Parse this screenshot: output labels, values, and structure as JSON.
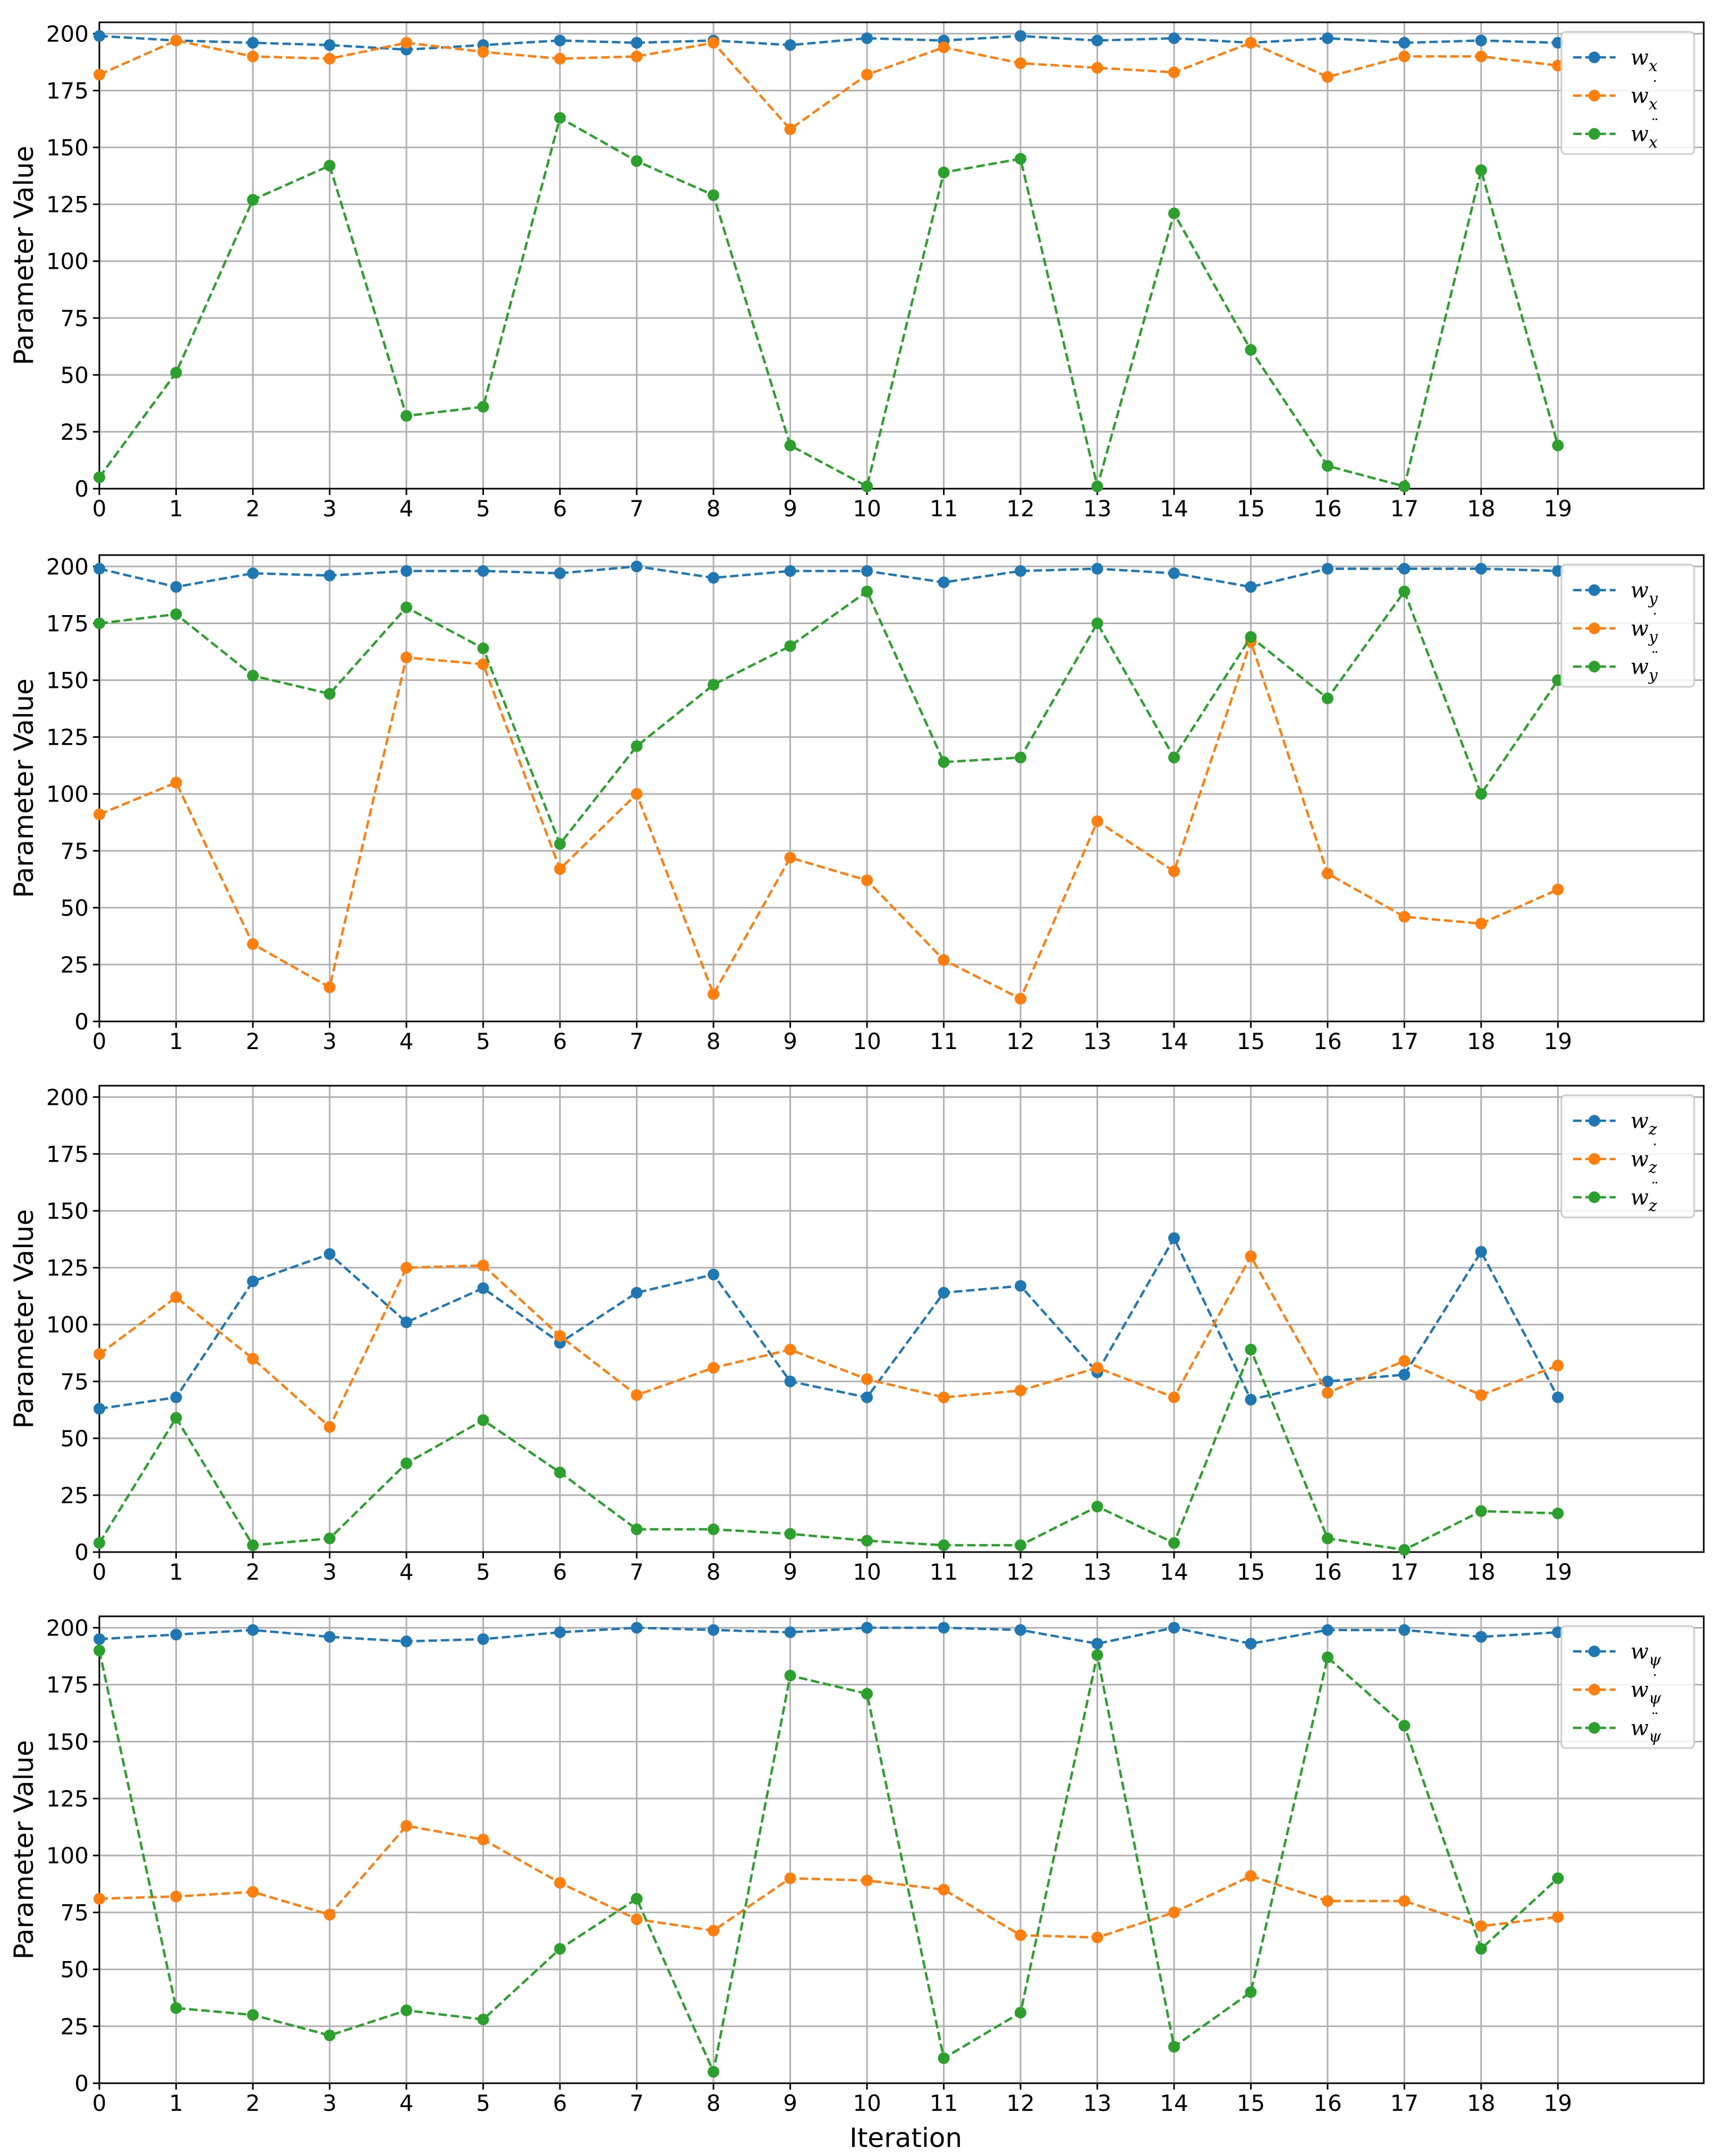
{
  "figure": {
    "xlabel": "Iteration",
    "ylabel": "Parameter Value"
  },
  "colors": {
    "blue": "#1f77b4",
    "orange": "#ff7f0e",
    "green": "#2ca02c",
    "grid": "#b0b0b0"
  },
  "chart_data": [
    {
      "type": "line",
      "xlabel": "",
      "ylabel": "Parameter Value",
      "x": [
        0,
        1,
        2,
        3,
        4,
        5,
        6,
        7,
        8,
        9,
        10,
        11,
        12,
        13,
        14,
        15,
        16,
        17,
        18,
        19
      ],
      "xticks": [
        "0",
        "1",
        "2",
        "3",
        "4",
        "5",
        "6",
        "7",
        "8",
        "9",
        "10",
        "11",
        "12",
        "13",
        "14",
        "15",
        "16",
        "17",
        "18",
        "19"
      ],
      "xlim": [
        0,
        20.9
      ],
      "ylim": [
        0,
        205
      ],
      "yticks": [
        "0",
        "25",
        "50",
        "75",
        "100",
        "125",
        "150",
        "175",
        "200"
      ],
      "grid": true,
      "legend_position": "top-right",
      "series": [
        {
          "name": "w_x",
          "label": "w",
          "sub": "x",
          "accent": "",
          "color": "#1f77b4",
          "values": [
            199,
            197,
            196,
            195,
            193,
            195,
            197,
            196,
            197,
            195,
            198,
            197,
            199,
            197,
            198,
            196,
            198,
            196,
            197,
            196
          ]
        },
        {
          "name": "w_xdot",
          "label": "w",
          "sub": "x",
          "accent": "˙",
          "color": "#ff7f0e",
          "values": [
            182,
            197,
            190,
            189,
            196,
            192,
            189,
            190,
            196,
            158,
            182,
            194,
            187,
            185,
            183,
            196,
            181,
            190,
            190,
            186
          ]
        },
        {
          "name": "w_xddot",
          "label": "w",
          "sub": "x",
          "accent": "¨",
          "color": "#2ca02c",
          "values": [
            5,
            51,
            127,
            142,
            32,
            36,
            163,
            144,
            129,
            19,
            1,
            139,
            145,
            1,
            121,
            61,
            10,
            1,
            140,
            19
          ]
        }
      ]
    },
    {
      "type": "line",
      "xlabel": "",
      "ylabel": "Parameter Value",
      "x": [
        0,
        1,
        2,
        3,
        4,
        5,
        6,
        7,
        8,
        9,
        10,
        11,
        12,
        13,
        14,
        15,
        16,
        17,
        18,
        19
      ],
      "xticks": [
        "0",
        "1",
        "2",
        "3",
        "4",
        "5",
        "6",
        "7",
        "8",
        "9",
        "10",
        "11",
        "12",
        "13",
        "14",
        "15",
        "16",
        "17",
        "18",
        "19"
      ],
      "xlim": [
        0,
        20.9
      ],
      "ylim": [
        0,
        205
      ],
      "yticks": [
        "0",
        "25",
        "50",
        "75",
        "100",
        "125",
        "150",
        "175",
        "200"
      ],
      "grid": true,
      "legend_position": "top-right",
      "series": [
        {
          "name": "w_y",
          "label": "w",
          "sub": "y",
          "accent": "",
          "color": "#1f77b4",
          "values": [
            199,
            191,
            197,
            196,
            198,
            198,
            197,
            200,
            195,
            198,
            198,
            193,
            198,
            199,
            197,
            191,
            199,
            199,
            199,
            198
          ]
        },
        {
          "name": "w_ydot",
          "label": "w",
          "sub": "y",
          "accent": "˙",
          "color": "#ff7f0e",
          "values": [
            91,
            105,
            34,
            15,
            160,
            157,
            67,
            100,
            12,
            72,
            62,
            27,
            10,
            88,
            66,
            167,
            65,
            46,
            43,
            58
          ]
        },
        {
          "name": "w_yddot",
          "label": "w",
          "sub": "y",
          "accent": "¨",
          "color": "#2ca02c",
          "values": [
            175,
            179,
            152,
            144,
            182,
            164,
            78,
            121,
            148,
            165,
            189,
            114,
            116,
            175,
            116,
            169,
            142,
            189,
            100,
            150
          ]
        }
      ]
    },
    {
      "type": "line",
      "xlabel": "",
      "ylabel": "Parameter Value",
      "x": [
        0,
        1,
        2,
        3,
        4,
        5,
        6,
        7,
        8,
        9,
        10,
        11,
        12,
        13,
        14,
        15,
        16,
        17,
        18,
        19
      ],
      "xticks": [
        "0",
        "1",
        "2",
        "3",
        "4",
        "5",
        "6",
        "7",
        "8",
        "9",
        "10",
        "11",
        "12",
        "13",
        "14",
        "15",
        "16",
        "17",
        "18",
        "19"
      ],
      "xlim": [
        0,
        20.9
      ],
      "ylim": [
        0,
        205
      ],
      "yticks": [
        "0",
        "25",
        "50",
        "75",
        "100",
        "125",
        "150",
        "175",
        "200"
      ],
      "grid": true,
      "legend_position": "top-right",
      "series": [
        {
          "name": "w_z",
          "label": "w",
          "sub": "z",
          "accent": "",
          "color": "#1f77b4",
          "values": [
            63,
            68,
            119,
            131,
            101,
            116,
            92,
            114,
            122,
            75,
            68,
            114,
            117,
            79,
            138,
            67,
            75,
            78,
            132,
            68
          ]
        },
        {
          "name": "w_zdot",
          "label": "w",
          "sub": "z",
          "accent": "˙",
          "color": "#ff7f0e",
          "values": [
            87,
            112,
            85,
            55,
            125,
            126,
            95,
            69,
            81,
            89,
            76,
            68,
            71,
            81,
            68,
            130,
            70,
            84,
            69,
            82
          ]
        },
        {
          "name": "w_zddot",
          "label": "w",
          "sub": "z",
          "accent": "¨",
          "color": "#2ca02c",
          "values": [
            4,
            59,
            3,
            6,
            39,
            58,
            35,
            10,
            10,
            8,
            5,
            3,
            3,
            20,
            4,
            89,
            6,
            1,
            18,
            17
          ]
        }
      ]
    },
    {
      "type": "line",
      "xlabel": "Iteration",
      "ylabel": "Parameter Value",
      "x": [
        0,
        1,
        2,
        3,
        4,
        5,
        6,
        7,
        8,
        9,
        10,
        11,
        12,
        13,
        14,
        15,
        16,
        17,
        18,
        19
      ],
      "xticks": [
        "0",
        "1",
        "2",
        "3",
        "4",
        "5",
        "6",
        "7",
        "8",
        "9",
        "10",
        "11",
        "12",
        "13",
        "14",
        "15",
        "16",
        "17",
        "18",
        "19"
      ],
      "xlim": [
        0,
        20.9
      ],
      "ylim": [
        0,
        205
      ],
      "yticks": [
        "0",
        "25",
        "50",
        "75",
        "100",
        "125",
        "150",
        "175",
        "200"
      ],
      "grid": true,
      "legend_position": "top-right",
      "series": [
        {
          "name": "w_psi",
          "label": "w",
          "sub": "ψ",
          "accent": "",
          "color": "#1f77b4",
          "values": [
            195,
            197,
            199,
            196,
            194,
            195,
            198,
            200,
            199,
            198,
            200,
            200,
            199,
            193,
            200,
            193,
            199,
            199,
            196,
            198
          ]
        },
        {
          "name": "w_psidot",
          "label": "w",
          "sub": "ψ",
          "accent": "˙",
          "color": "#ff7f0e",
          "values": [
            81,
            82,
            84,
            74,
            113,
            107,
            88,
            72,
            67,
            90,
            89,
            85,
            65,
            64,
            75,
            91,
            80,
            80,
            69,
            73
          ]
        },
        {
          "name": "w_psiddot",
          "label": "w",
          "sub": "ψ",
          "accent": "¨",
          "color": "#2ca02c",
          "values": [
            190,
            33,
            30,
            21,
            32,
            28,
            59,
            81,
            5,
            179,
            171,
            11,
            31,
            188,
            16,
            40,
            187,
            157,
            59,
            90
          ]
        }
      ]
    }
  ]
}
